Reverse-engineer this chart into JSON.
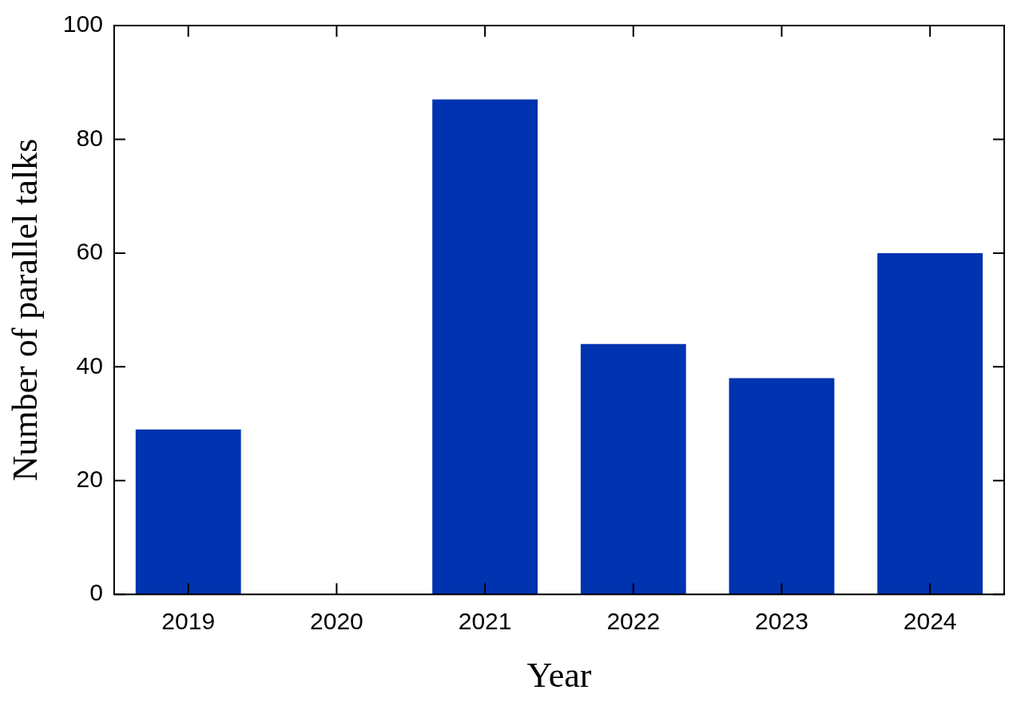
{
  "chart_data": {
    "type": "bar",
    "xlabel": "Year",
    "ylabel": "Number of parallel talks",
    "categories": [
      "2019",
      "2020",
      "2021",
      "2022",
      "2023",
      "2024"
    ],
    "values": [
      29,
      0,
      87,
      44,
      38,
      60
    ],
    "color": "#0033b0",
    "ylim": [
      0,
      100
    ],
    "yticks": [
      0,
      20,
      40,
      60,
      80,
      100
    ],
    "grid": false,
    "legend": false
  }
}
